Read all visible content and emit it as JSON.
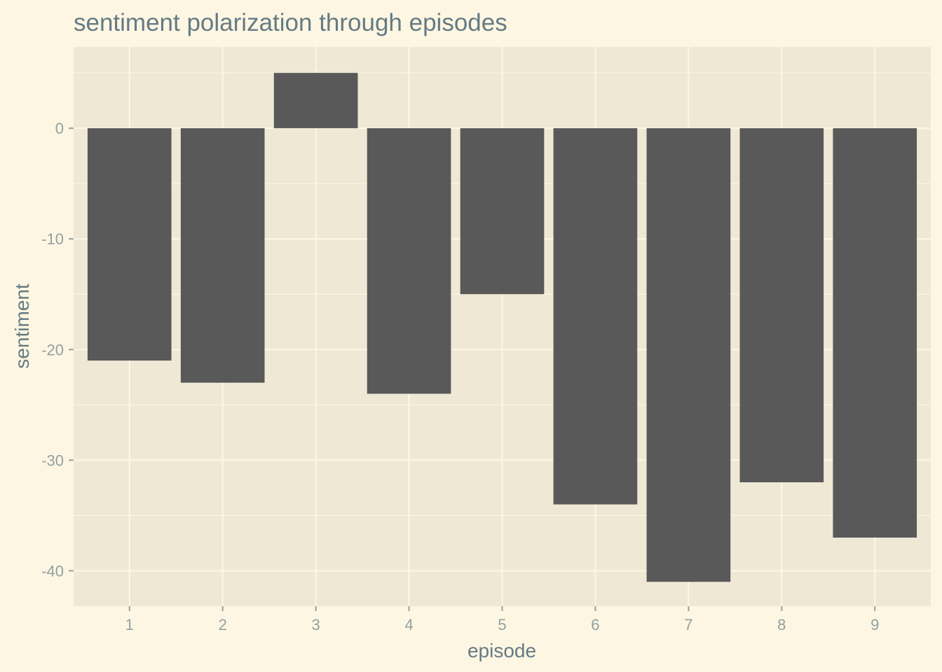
{
  "chart_data": {
    "type": "bar",
    "title": "sentiment polarization through episodes",
    "xlabel": "episode",
    "ylabel": "sentiment",
    "categories": [
      "1",
      "2",
      "3",
      "4",
      "5",
      "6",
      "7",
      "8",
      "9"
    ],
    "values": [
      -21,
      -23,
      5,
      -24,
      -15,
      -34,
      -41,
      -32,
      -37
    ],
    "ylim": [
      -43.2,
      7.35
    ],
    "yticks": [
      0,
      -10,
      -20,
      -30,
      -40
    ],
    "ytick_labels": [
      "0",
      "-10",
      "-20",
      "-30",
      "-40"
    ],
    "grid": true,
    "colors": {
      "background": "#fdf6e3",
      "panel": "#eee8d5",
      "grid": "#fdf6e3",
      "bar": "#595959",
      "text": "#657b83",
      "tick": "#93a1a1"
    }
  }
}
